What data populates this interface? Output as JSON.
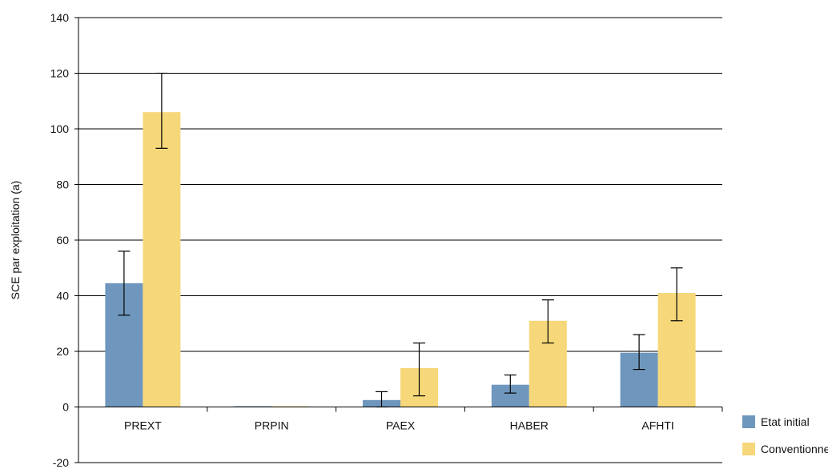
{
  "chart_data": {
    "type": "bar",
    "ylabel": "SCE par exploitation (a)",
    "ylim": [
      -20,
      140
    ],
    "yticks": [
      -20,
      0,
      20,
      40,
      60,
      80,
      100,
      120,
      140
    ],
    "grid": true,
    "legend_position": "bottom-right",
    "categories": [
      "PREXT",
      "PRPIN",
      "PAEX",
      "HABER",
      "AFHTI"
    ],
    "series": [
      {
        "name": "Etat initial",
        "color": "#6f97bd",
        "values": [
          44.5,
          0,
          2.5,
          8,
          19.5
        ],
        "error_low": [
          33,
          null,
          0,
          5,
          13.5
        ],
        "error_high": [
          56,
          null,
          5.5,
          11.5,
          26
        ]
      },
      {
        "name": "Conventionnel",
        "color": "#f6d87a",
        "values": [
          106,
          0,
          14,
          31,
          41
        ],
        "error_low": [
          93,
          null,
          4,
          23,
          31
        ],
        "error_high": [
          120,
          null,
          23,
          38.5,
          50
        ]
      }
    ]
  }
}
